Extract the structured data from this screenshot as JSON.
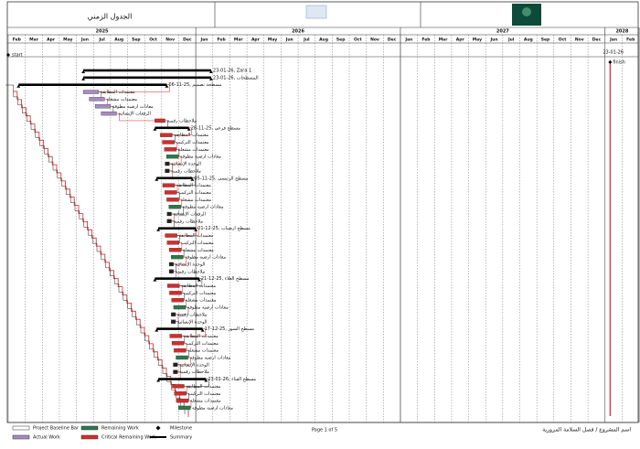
{
  "header": {
    "title": "الجدول الزمني",
    "project": "اسم المشروع / فصل السلامة المرورية",
    "page": "Page 1 of 5"
  },
  "years": [
    {
      "label": "2025",
      "months": [
        "Feb",
        "Mar",
        "Apr",
        "May",
        "Jun",
        "Jul",
        "Aug",
        "Sep",
        "Oct",
        "Nov",
        "Dec"
      ]
    },
    {
      "label": "2026",
      "months": [
        "Jan",
        "Feb",
        "Mar",
        "Apr",
        "May",
        "Jun",
        "Jul",
        "Aug",
        "Sep",
        "Oct",
        "Nov",
        "Dec"
      ]
    },
    {
      "label": "2027",
      "months": [
        "Jan",
        "Feb",
        "Mar",
        "Apr",
        "May",
        "Jun",
        "Jul",
        "Aug",
        "Sep",
        "Oct",
        "Nov",
        "Dec"
      ]
    },
    {
      "label": "2028",
      "months": [
        "Jan",
        "Feb"
      ]
    }
  ],
  "milestones": {
    "start": "start",
    "finish": "finish",
    "finish_date": "23-01-26"
  },
  "tasks": [
    "23-01-26, Zara 1",
    "23-01-26, المسطحات",
    "06-11-25, مسطحة تصميم",
    "معتمدات المطابقة",
    "معتمدات مشغلة",
    "معادات ارضية مطوقة",
    "الرفعات الإنشائية",
    "ملاحظات رقمية",
    "28-11-25, مسطح فرعي",
    "معتمدات المطابقة",
    "معتمدات التركيب",
    "معتمدات مشغلة",
    "معادات ارضية مطوقة",
    "الوحدة الإنشائية",
    "ملاحظات رقمية",
    "05-11-25, مسطح الرئيسي",
    "معتمدات المطابقة",
    "معتمدات التركيب",
    "معتمدات مشغلة",
    "معادات ارضية مطوقة",
    "الرفعات الإنشائية",
    "ملاحظات رقمية",
    "01-12-25, مسطح ارضيات",
    "معتمدات المطابقة",
    "معتمدات التركيب",
    "معتمدات مشغلة",
    "معادات ارضية مطوقة",
    "الوحدة الإنشائية",
    "ملاحظات رقمية",
    "21-12-25, مسطح العلاء",
    "معتمدات المطابقة",
    "معتمدات التركيب",
    "معتمدات مشغلة",
    "معادات ارضية مطوقة",
    "ملاحظات رقمية",
    "الوحدة الإنشائية",
    "17-12-25, مسطح السور",
    "معتمدات المطابقة",
    "معتمدات التركيب",
    "معتمدات مشغلة",
    "معادات ارضية مطوقة",
    "الوحدة الإنشائية",
    "ملاحظات رقمية",
    "23-01-26, مسطح الفناء",
    "معتمدات المطابقة",
    "معتمدات التركيب",
    "معتمدات مشغلة",
    "معادات ارضية مطوقة"
  ],
  "legend": [
    "Project Baseline Bar",
    "Actual Work",
    "Remaining Work",
    "Critical Remaining Work",
    "Milestone",
    "Summary"
  ]
}
